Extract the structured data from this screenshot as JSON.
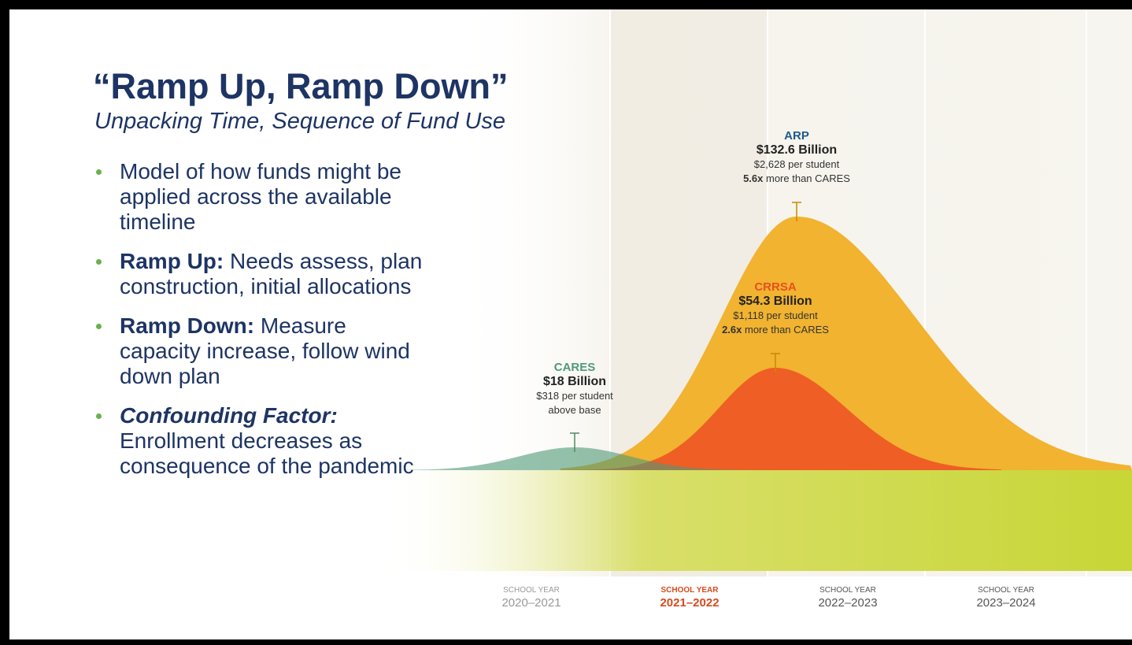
{
  "slide": {
    "title": "“Ramp Up, Ramp Down”",
    "subtitle": "Unpacking Time, Sequence of Fund Use",
    "bullets": [
      {
        "text": "Model of how funds might be applied across the available timeline"
      },
      {
        "lead": "Ramp Up:",
        "text": "Needs assess, plan construction, initial allocations"
      },
      {
        "lead": "Ramp Down:",
        "text": "Measure capacity increase, follow wind down plan"
      },
      {
        "lead": "Confounding Factor:",
        "text": "Enrollment decreases as consequence of the pandemic"
      }
    ],
    "funds": [
      {
        "name": "ARP",
        "amount": "$132.6 Billion",
        "per_student": "$2,628 per student",
        "multiplier": "5.6x",
        "comparison": "more than CARES"
      },
      {
        "name": "CRRSA",
        "amount": "$54.3 Billion",
        "per_student": "$1,118 per student",
        "multiplier": "2.6x",
        "comparison": "more than CARES"
      },
      {
        "name": "CARES",
        "amount": "$18 Billion",
        "per_student": "$318 per student",
        "note": "above base"
      }
    ],
    "school_years": [
      {
        "caption": "SCHOOL YEAR",
        "years": "2020–2021"
      },
      {
        "caption": "SCHOOL YEAR",
        "years": "2021–2022"
      },
      {
        "caption": "SCHOOL YEAR",
        "years": "2022–2023"
      },
      {
        "caption": "SCHOOL YEAR",
        "years": "2023–2024"
      }
    ]
  }
}
